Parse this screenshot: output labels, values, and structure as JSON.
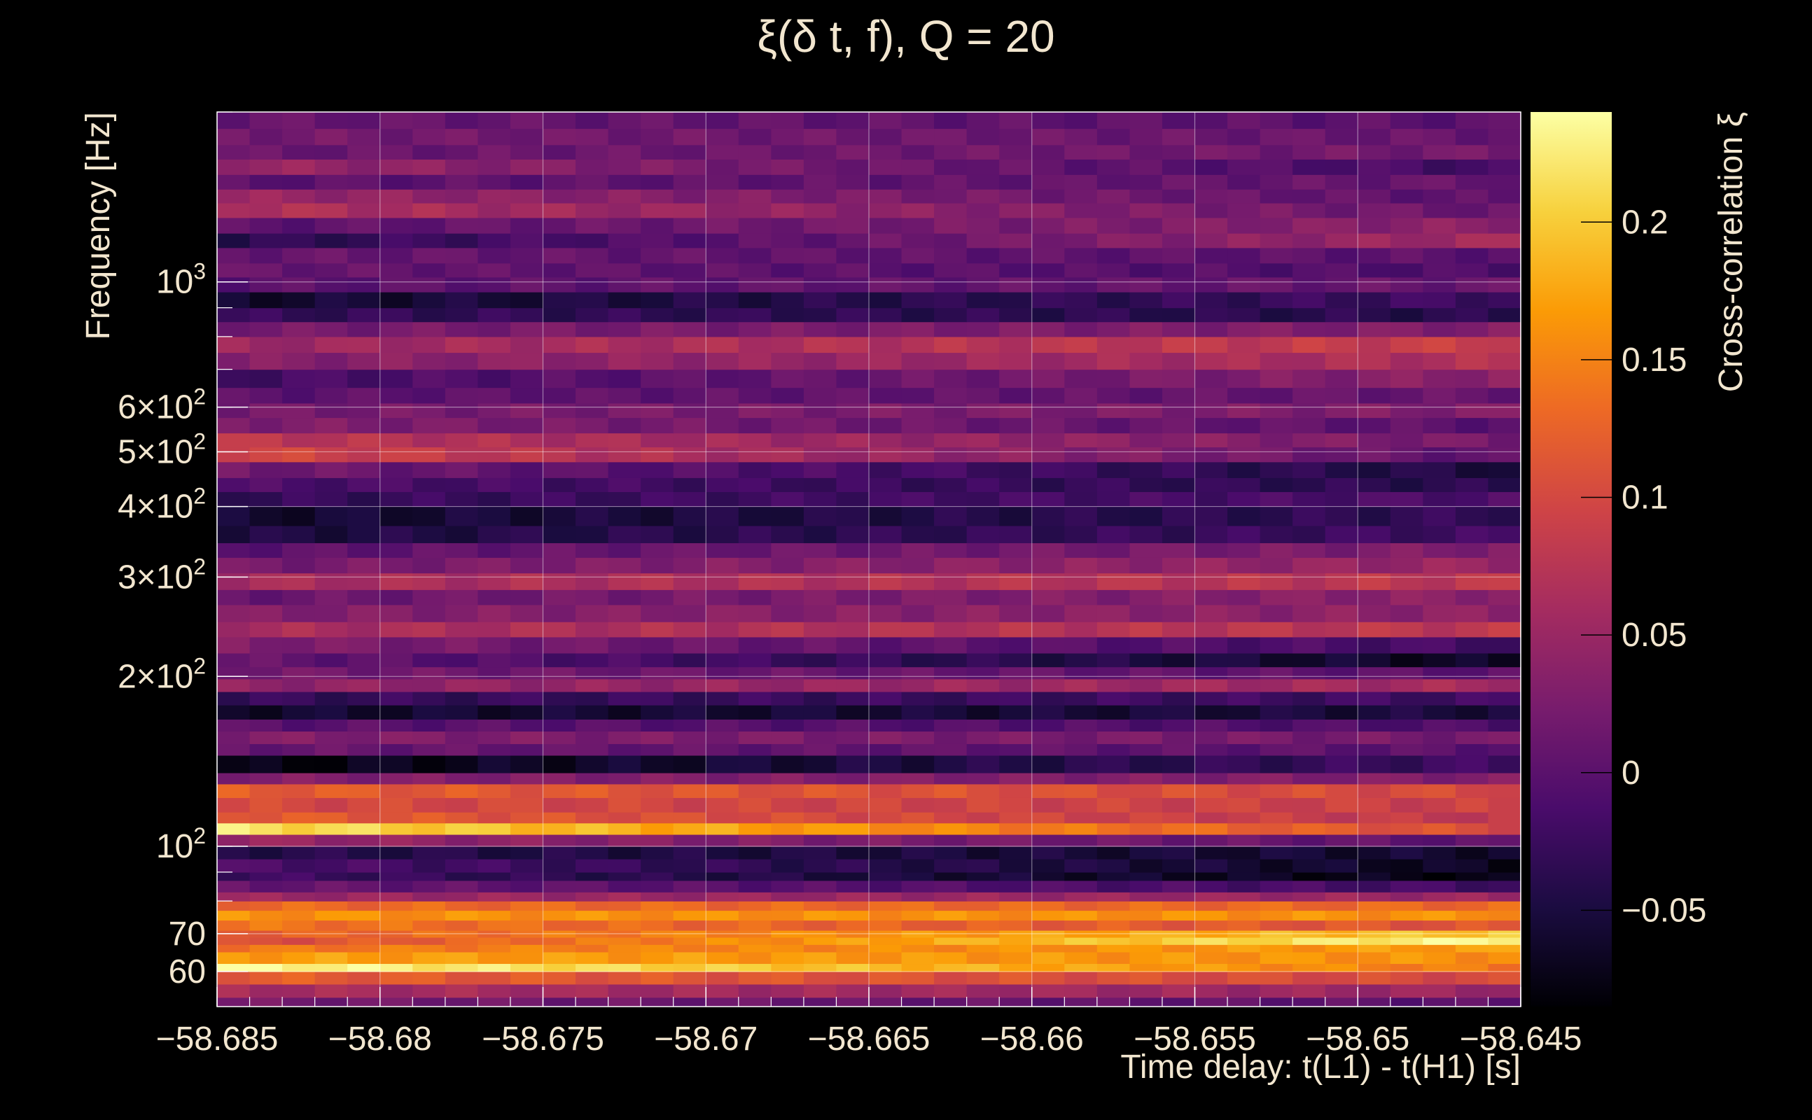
{
  "chart_data": {
    "type": "heatmap",
    "title": "ξ(δ t, f), Q = 20",
    "xlabel": "Time delay: t(L1) - t(H1) [s]",
    "ylabel": "Frequency [Hz]",
    "colorbar_label": "Cross-correlation ξ",
    "xlim": [
      -58.685,
      -58.645
    ],
    "ylim": [
      52,
      2000
    ],
    "yscale": "log",
    "x_ticks": [
      {
        "value": -58.685,
        "label": "−58.685"
      },
      {
        "value": -58.68,
        "label": "−58.68"
      },
      {
        "value": -58.675,
        "label": "−58.675"
      },
      {
        "value": -58.67,
        "label": "−58.67"
      },
      {
        "value": -58.665,
        "label": "−58.665"
      },
      {
        "value": -58.66,
        "label": "−58.66"
      },
      {
        "value": -58.655,
        "label": "−58.655"
      },
      {
        "value": -58.65,
        "label": "−58.65"
      },
      {
        "value": -58.645,
        "label": "−58.645"
      }
    ],
    "y_ticks": [
      {
        "value": 60,
        "base": "60",
        "exp": ""
      },
      {
        "value": 70,
        "base": "70",
        "exp": ""
      },
      {
        "value": 100,
        "base": "10",
        "exp": "2"
      },
      {
        "value": 200,
        "base": "2×10",
        "exp": "2"
      },
      {
        "value": 300,
        "base": "3×10",
        "exp": "2"
      },
      {
        "value": 400,
        "base": "4×10",
        "exp": "2"
      },
      {
        "value": 500,
        "base": "5×10",
        "exp": "2"
      },
      {
        "value": 600,
        "base": "6×10",
        "exp": "2"
      },
      {
        "value": 1000,
        "base": "10",
        "exp": "3"
      }
    ],
    "colorbar_range": [
      -0.085,
      0.24
    ],
    "colorbar_ticks": [
      {
        "value": -0.05,
        "label": "−0.05"
      },
      {
        "value": 0,
        "label": "0"
      },
      {
        "value": 0.05,
        "label": "0.05"
      },
      {
        "value": 0.1,
        "label": "0.1"
      },
      {
        "value": 0.15,
        "label": "0.15"
      },
      {
        "value": 0.2,
        "label": "0.2"
      }
    ],
    "colormap": [
      "#000004",
      "#1b0c41",
      "#4a0c6b",
      "#781c6d",
      "#a52c60",
      "#cf4446",
      "#ed6925",
      "#fb9b06",
      "#f7d13d",
      "#fcffa4"
    ],
    "grid": true,
    "bands": [
      {
        "f_lo": 52,
        "f_hi": 54,
        "v0": 0.02,
        "v1": 0.0
      },
      {
        "f_lo": 54,
        "f_hi": 57,
        "v0": 0.06,
        "v1": 0.05
      },
      {
        "f_lo": 57,
        "f_hi": 60,
        "v0": 0.12,
        "v1": 0.1
      },
      {
        "f_lo": 60,
        "f_hi": 62,
        "v0": 0.24,
        "v1": 0.14
      },
      {
        "f_lo": 62,
        "f_hi": 65,
        "v0": 0.17,
        "v1": 0.16
      },
      {
        "f_lo": 65,
        "f_hi": 67,
        "v0": 0.14,
        "v1": 0.17
      },
      {
        "f_lo": 67,
        "f_hi": 69,
        "v0": 0.1,
        "v1": 0.24
      },
      {
        "f_lo": 69,
        "f_hi": 71,
        "v0": 0.12,
        "v1": 0.2
      },
      {
        "f_lo": 71,
        "f_hi": 74,
        "v0": 0.14,
        "v1": 0.11
      },
      {
        "f_lo": 74,
        "f_hi": 77,
        "v0": 0.16,
        "v1": 0.16
      },
      {
        "f_lo": 77,
        "f_hi": 80,
        "v0": 0.13,
        "v1": 0.13
      },
      {
        "f_lo": 80,
        "f_hi": 83,
        "v0": 0.05,
        "v1": 0.05
      },
      {
        "f_lo": 83,
        "f_hi": 87,
        "v0": 0.01,
        "v1": -0.02
      },
      {
        "f_lo": 87,
        "f_hi": 90,
        "v0": -0.02,
        "v1": -0.08
      },
      {
        "f_lo": 90,
        "f_hi": 95,
        "v0": -0.01,
        "v1": -0.07
      },
      {
        "f_lo": 95,
        "f_hi": 100,
        "v0": -0.04,
        "v1": -0.06
      },
      {
        "f_lo": 100,
        "f_hi": 105,
        "v0": 0.05,
        "v1": 0.0
      },
      {
        "f_lo": 105,
        "f_hi": 110,
        "v0": 0.22,
        "v1": 0.1
      },
      {
        "f_lo": 110,
        "f_hi": 115,
        "v0": 0.12,
        "v1": 0.08
      },
      {
        "f_lo": 115,
        "f_hi": 122,
        "v0": 0.1,
        "v1": 0.09
      },
      {
        "f_lo": 122,
        "f_hi": 129,
        "v0": 0.12,
        "v1": 0.1
      },
      {
        "f_lo": 129,
        "f_hi": 135,
        "v0": 0.03,
        "v1": 0.03
      },
      {
        "f_lo": 135,
        "f_hi": 145,
        "v0": -0.08,
        "v1": -0.02
      },
      {
        "f_lo": 145,
        "f_hi": 152,
        "v0": 0.01,
        "v1": 0.0
      },
      {
        "f_lo": 152,
        "f_hi": 160,
        "v0": 0.03,
        "v1": 0.02
      },
      {
        "f_lo": 160,
        "f_hi": 168,
        "v0": 0.0,
        "v1": -0.01
      },
      {
        "f_lo": 168,
        "f_hi": 178,
        "v0": -0.06,
        "v1": -0.05
      },
      {
        "f_lo": 178,
        "f_hi": 188,
        "v0": -0.03,
        "v1": -0.02
      },
      {
        "f_lo": 188,
        "f_hi": 198,
        "v0": 0.04,
        "v1": 0.06
      },
      {
        "f_lo": 198,
        "f_hi": 208,
        "v0": 0.02,
        "v1": 0.0
      },
      {
        "f_lo": 208,
        "f_hi": 220,
        "v0": 0.01,
        "v1": -0.07
      },
      {
        "f_lo": 220,
        "f_hi": 235,
        "v0": 0.03,
        "v1": -0.02
      },
      {
        "f_lo": 235,
        "f_hi": 250,
        "v0": 0.06,
        "v1": 0.08
      },
      {
        "f_lo": 250,
        "f_hi": 268,
        "v0": 0.03,
        "v1": 0.04
      },
      {
        "f_lo": 268,
        "f_hi": 285,
        "v0": 0.01,
        "v1": 0.04
      },
      {
        "f_lo": 285,
        "f_hi": 305,
        "v0": 0.06,
        "v1": 0.08
      },
      {
        "f_lo": 305,
        "f_hi": 325,
        "v0": 0.02,
        "v1": 0.05
      },
      {
        "f_lo": 325,
        "f_hi": 345,
        "v0": 0.0,
        "v1": 0.03
      },
      {
        "f_lo": 345,
        "f_hi": 370,
        "v0": -0.05,
        "v1": -0.02
      },
      {
        "f_lo": 370,
        "f_hi": 400,
        "v0": -0.06,
        "v1": -0.03
      },
      {
        "f_lo": 400,
        "f_hi": 425,
        "v0": -0.03,
        "v1": -0.01
      },
      {
        "f_lo": 425,
        "f_hi": 450,
        "v0": -0.01,
        "v1": -0.04
      },
      {
        "f_lo": 450,
        "f_hi": 480,
        "v0": 0.02,
        "v1": -0.05
      },
      {
        "f_lo": 480,
        "f_hi": 510,
        "v0": 0.1,
        "v1": 0.0
      },
      {
        "f_lo": 510,
        "f_hi": 540,
        "v0": 0.08,
        "v1": 0.02
      },
      {
        "f_lo": 540,
        "f_hi": 575,
        "v0": 0.03,
        "v1": 0.0
      },
      {
        "f_lo": 575,
        "f_hi": 610,
        "v0": 0.02,
        "v1": 0.03
      },
      {
        "f_lo": 610,
        "f_hi": 650,
        "v0": 0.0,
        "v1": 0.01
      },
      {
        "f_lo": 650,
        "f_hi": 700,
        "v0": -0.02,
        "v1": 0.04
      },
      {
        "f_lo": 700,
        "f_hi": 750,
        "v0": 0.03,
        "v1": 0.07
      },
      {
        "f_lo": 750,
        "f_hi": 800,
        "v0": 0.05,
        "v1": 0.09
      },
      {
        "f_lo": 800,
        "f_hi": 850,
        "v0": 0.02,
        "v1": 0.03
      },
      {
        "f_lo": 850,
        "f_hi": 900,
        "v0": -0.03,
        "v1": -0.04
      },
      {
        "f_lo": 900,
        "f_hi": 960,
        "v0": -0.06,
        "v1": -0.02
      },
      {
        "f_lo": 960,
        "f_hi": 1020,
        "v0": 0.0,
        "v1": 0.01
      },
      {
        "f_lo": 1020,
        "f_hi": 1080,
        "v0": 0.01,
        "v1": -0.01
      },
      {
        "f_lo": 1080,
        "f_hi": 1150,
        "v0": 0.01,
        "v1": 0.0
      },
      {
        "f_lo": 1150,
        "f_hi": 1220,
        "v0": -0.04,
        "v1": 0.06
      },
      {
        "f_lo": 1220,
        "f_hi": 1300,
        "v0": 0.0,
        "v1": 0.04
      },
      {
        "f_lo": 1300,
        "f_hi": 1380,
        "v0": 0.07,
        "v1": 0.01
      },
      {
        "f_lo": 1380,
        "f_hi": 1460,
        "v0": 0.05,
        "v1": 0.0
      },
      {
        "f_lo": 1460,
        "f_hi": 1550,
        "v0": 0.0,
        "v1": 0.01
      },
      {
        "f_lo": 1550,
        "f_hi": 1650,
        "v0": 0.05,
        "v1": -0.02
      },
      {
        "f_lo": 1650,
        "f_hi": 1750,
        "v0": 0.01,
        "v1": 0.02
      },
      {
        "f_lo": 1750,
        "f_hi": 1870,
        "v0": 0.02,
        "v1": 0.01
      },
      {
        "f_lo": 1870,
        "f_hi": 2000,
        "v0": 0.01,
        "v1": 0.0
      }
    ]
  }
}
